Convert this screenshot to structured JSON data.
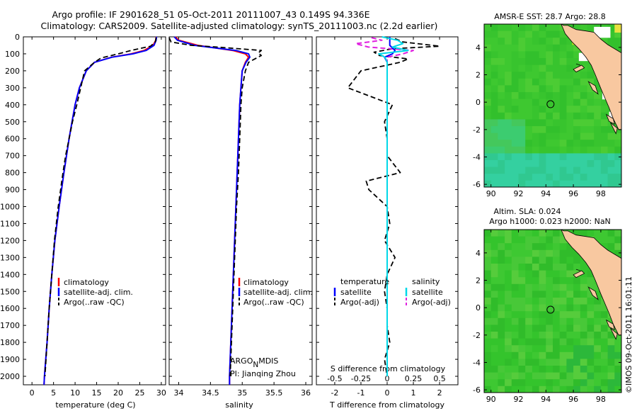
{
  "header": {
    "title_line1": "Argo profile: IF 2901628_51 05-Oct-2011 20111007_43 0.149S 94.336E",
    "title_line2": "Climatology: CARS2009. Satellite-adjusted climatology: synTS_20111003.nc (2.2d earlier)"
  },
  "credit": {
    "argo": "ARGO",
    "argo_sub": "N",
    "argo_tail": "MDIS",
    "pi": "PI: Jianqing Zhou",
    "imos": "©IMOS 09-Oct-2011 16:01:11"
  },
  "legends": {
    "climatology": "climatology",
    "satellite_adj": "satellite-adj. clim.",
    "argo_raw": "Argo(..raw -QC)",
    "temperature": "temperature",
    "salinity": "salinity",
    "satellite": "satellite",
    "argo_adj": "Argo(-adj)"
  },
  "colors": {
    "climatology": "#ff0000",
    "satellite": "#0000ff",
    "argo": "#000000",
    "sal_sat": "#00d8e8",
    "sal_argo": "#e020e0",
    "land": "#f8c8a0",
    "ocean_mid": "#38c830"
  },
  "maps": {
    "sst_title": "AMSR-E SST: 28.7 Argo: 28.8",
    "sla_title1": "Altim. SLA: 0.024",
    "sla_title2": "Argo h1000: 0.023 h2000: NaN",
    "x_ticks": [
      "90",
      "92",
      "94",
      "96",
      "98"
    ],
    "y_ticks": [
      "4",
      "2",
      "0",
      "-2",
      "-4",
      "-6"
    ],
    "float_lon": 94.336,
    "float_lat": -0.149
  },
  "chart_data": [
    {
      "type": "line",
      "xlabel": "temperature (deg C)",
      "ylabel": "",
      "xlim": [
        -2,
        31
      ],
      "ylim": [
        2050,
        0
      ],
      "x_ticks": [
        0,
        5,
        10,
        15,
        20,
        25,
        30
      ],
      "y_ticks": [
        0,
        100,
        200,
        300,
        400,
        500,
        600,
        700,
        800,
        900,
        1000,
        1100,
        1200,
        1300,
        1400,
        1500,
        1600,
        1700,
        1800,
        1900,
        2000
      ],
      "series": [
        {
          "name": "climatology",
          "depth": [
            0,
            20,
            50,
            80,
            100,
            120,
            150,
            200,
            300,
            400,
            500,
            600,
            800,
            1000,
            1200,
            1400,
            1600,
            1800,
            2000,
            2050
          ],
          "values": [
            28.8,
            28.7,
            28.1,
            26.0,
            23.0,
            18.5,
            14.5,
            12.6,
            11.0,
            10.0,
            9.3,
            8.6,
            7.4,
            6.3,
            5.3,
            4.6,
            4.0,
            3.5,
            2.9,
            2.8
          ]
        },
        {
          "name": "satellite-adj. clim.",
          "depth": [
            0,
            20,
            50,
            80,
            100,
            120,
            150,
            200,
            300,
            400,
            500,
            600,
            800,
            1000,
            1200,
            1400,
            1600,
            1800,
            2000,
            2050
          ],
          "values": [
            28.9,
            28.8,
            28.3,
            26.5,
            23.4,
            18.6,
            14.5,
            12.6,
            11.0,
            10.0,
            9.3,
            8.6,
            7.4,
            6.3,
            5.3,
            4.6,
            4.0,
            3.5,
            2.9,
            2.8
          ]
        },
        {
          "name": "Argo(..raw -QC)",
          "depth": [
            5,
            30,
            55,
            80,
            100,
            125,
            150,
            200,
            300,
            400,
            500,
            600,
            700,
            800,
            1000,
            1200,
            1400,
            1600,
            1800,
            2000
          ],
          "values": [
            28.8,
            28.6,
            27.5,
            23.0,
            20.0,
            16.0,
            14.5,
            12.2,
            11.3,
            10.4,
            9.4,
            8.6,
            7.8,
            7.2,
            6.1,
            5.2,
            4.6,
            4.0,
            3.5,
            3.0
          ]
        }
      ]
    },
    {
      "type": "line",
      "xlabel": "salinity",
      "ylabel": "",
      "xlim": [
        33.85,
        36.1
      ],
      "ylim": [
        2050,
        0
      ],
      "x_ticks": [
        34,
        34.5,
        35,
        35.5,
        36
      ],
      "series": [
        {
          "name": "climatology",
          "depth": [
            0,
            20,
            50,
            80,
            100,
            120,
            150,
            200,
            300,
            400,
            500,
            600,
            800,
            1000,
            1200,
            1400,
            1600,
            1800,
            2000,
            2050
          ],
          "values": [
            33.95,
            34.0,
            34.3,
            34.85,
            35.05,
            35.1,
            35.05,
            35.0,
            34.98,
            34.96,
            34.95,
            34.94,
            34.92,
            34.9,
            34.88,
            34.86,
            34.84,
            34.82,
            34.8,
            34.8
          ]
        },
        {
          "name": "satellite-adj. clim.",
          "depth": [
            0,
            20,
            50,
            80,
            100,
            120,
            150,
            200,
            300,
            400,
            500,
            600,
            800,
            1000,
            1200,
            1400,
            1600,
            1800,
            2000,
            2050
          ],
          "values": [
            33.93,
            33.98,
            34.25,
            34.9,
            35.1,
            35.12,
            35.06,
            35.0,
            34.98,
            34.96,
            34.95,
            34.94,
            34.92,
            34.9,
            34.88,
            34.86,
            34.84,
            34.82,
            34.8,
            34.8
          ]
        },
        {
          "name": "Argo(..raw -QC)",
          "depth": [
            5,
            30,
            50,
            60,
            80,
            95,
            110,
            130,
            150,
            200,
            300,
            400,
            600,
            800,
            1000,
            1200,
            1400,
            1600,
            1800,
            2000
          ],
          "values": [
            33.85,
            33.88,
            34.2,
            34.6,
            35.3,
            35.25,
            35.3,
            35.2,
            35.1,
            35.05,
            35.0,
            34.98,
            34.96,
            34.94,
            34.91,
            34.89,
            34.87,
            34.85,
            34.83,
            34.81
          ]
        }
      ]
    },
    {
      "type": "line",
      "xlabel": "T difference from climatology",
      "xlabel_top": "S difference from climatology",
      "ylabel": "",
      "xlim": [
        -2.7,
        2.7
      ],
      "ylim": [
        2050,
        0
      ],
      "x_ticks": [
        -2,
        -1,
        0,
        1,
        2
      ],
      "x_ticks_top": [
        "-0.5",
        "-0.25",
        "0",
        "0.25",
        "0.5"
      ],
      "series": [
        {
          "name": "temperature satellite",
          "depth": [
            0,
            20,
            50,
            80,
            100,
            120,
            150,
            200,
            400,
            800,
            1200,
            1600,
            2000
          ],
          "values": [
            0.1,
            0.1,
            0.1,
            0.3,
            0.2,
            -0.1,
            0.0,
            0.0,
            0.0,
            0.0,
            0.0,
            0.0,
            0.0
          ]
        },
        {
          "name": "temperature Argo(-adj)",
          "depth": [
            10,
            30,
            55,
            70,
            90,
            110,
            130,
            150,
            200,
            300,
            400,
            500,
            600,
            700,
            800,
            850,
            900,
            1000,
            1100,
            1200,
            1300,
            1400,
            1500,
            1600,
            1700,
            1800,
            1900,
            2000
          ],
          "values": [
            0.3,
            0.6,
            2.0,
            0.2,
            -0.5,
            -0.3,
            0.8,
            0.5,
            -1.0,
            -1.5,
            0.2,
            -0.1,
            0.0,
            0.0,
            0.5,
            -0.8,
            -0.7,
            0.0,
            0.1,
            -0.1,
            0.3,
            0.0,
            -0.1,
            0.0,
            0.0,
            0.1,
            -0.1,
            0.0
          ]
        },
        {
          "name": "salinity satellite",
          "depth": [
            0,
            20,
            40,
            60,
            80,
            100,
            120,
            150,
            200,
            400,
            800,
            1200,
            1600,
            2000
          ],
          "values": [
            -0.05,
            0.1,
            0.15,
            0.05,
            0.2,
            -0.08,
            -0.02,
            0.0,
            0.0,
            0.0,
            0.0,
            0.0,
            0.0,
            0.0
          ]
        },
        {
          "name": "salinity Argo(-adj)",
          "depth": [
            5,
            20,
            40,
            60,
            80,
            100,
            120,
            150,
            200,
            400,
            600,
            800,
            1200,
            1600,
            2000
          ],
          "values": [
            -0.15,
            -0.05,
            -0.3,
            -0.18,
            0.25,
            0.15,
            0.0,
            0.0,
            0.0,
            0.0,
            0.0,
            0.0,
            0.0,
            0.0,
            0.0
          ]
        }
      ]
    }
  ]
}
